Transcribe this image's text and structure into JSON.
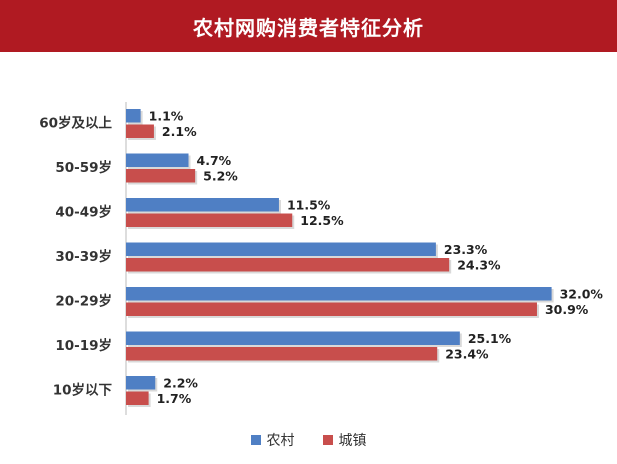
{
  "colors": {
    "header": "#b01a22",
    "rural": "#4f7fc4",
    "urban": "#c84e4c"
  },
  "chart_data": {
    "type": "bar",
    "orientation": "horizontal",
    "title": "农村网购消费者特征分析",
    "categories": [
      "60岁及以上",
      "50-59岁",
      "40-49岁",
      "30-39岁",
      "20-29岁",
      "10-19岁",
      "10岁以下"
    ],
    "series": [
      {
        "name": "农村",
        "color": "#4f7fc4",
        "values": [
          1.1,
          4.7,
          11.5,
          23.3,
          32.0,
          25.1,
          2.2
        ],
        "labels": [
          "1.1%",
          "4.7%",
          "11.5%",
          "23.3%",
          "32.0%",
          "25.1%",
          "2.2%"
        ]
      },
      {
        "name": "城镇",
        "color": "#c84e4c",
        "values": [
          2.1,
          5.2,
          12.5,
          24.3,
          30.9,
          23.4,
          1.7
        ],
        "labels": [
          "2.1%",
          "5.2%",
          "12.5%",
          "24.3%",
          "30.9%",
          "23.4%",
          "1.7%"
        ]
      }
    ],
    "legend_position": "bottom",
    "grid": false
  }
}
